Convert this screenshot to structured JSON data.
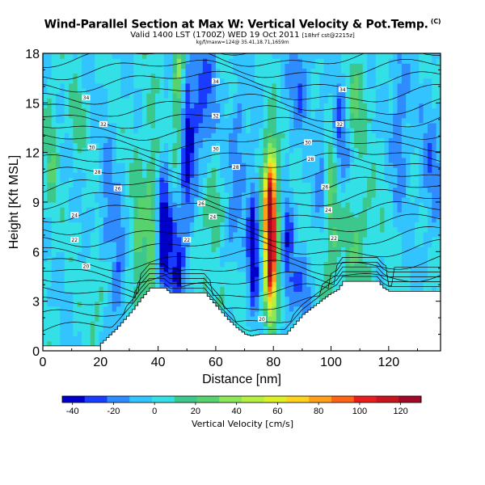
{
  "header": {
    "title": "Wind-Parallel Section at Max W: Vertical Velocity & Pot.Temp.",
    "title_tag": "(C)",
    "valid_line": "Valid 1400 LST (1700Z) WED 19 Oct 2011",
    "valid_line_small": "[18hrf cst@2215z]",
    "loc_line": "kg/f/maxw=124@ 35.41,18.71,1659m"
  },
  "chart_data": {
    "type": "heatmap",
    "xlabel": "Distance [nm]",
    "ylabel": "Height [Kft MSL]",
    "xlim": [
      0,
      138
    ],
    "ylim": [
      0,
      18
    ],
    "xticks": [
      0,
      20,
      40,
      60,
      80,
      100,
      120
    ],
    "yticks": [
      0,
      3,
      6,
      9,
      12,
      15,
      18
    ],
    "colorbar": {
      "title": "Vertical Velocity [cm/s]",
      "ticks": [
        -40,
        -20,
        0,
        20,
        40,
        60,
        80,
        100,
        120
      ],
      "min": -45,
      "max": 130,
      "colors": [
        "#0000c8",
        "#1a3cff",
        "#2f8cff",
        "#33c4ff",
        "#33e0e6",
        "#3cc88c",
        "#58d26e",
        "#8ce658",
        "#b4f040",
        "#dcf028",
        "#ffd21e",
        "#ffa018",
        "#ff6414",
        "#e61e1e",
        "#c8141e",
        "#a00a28"
      ]
    },
    "contour_labels": [
      {
        "text": "34",
        "x": 15,
        "y": 15.3
      },
      {
        "text": "34",
        "x": 60,
        "y": 16.3
      },
      {
        "text": "34",
        "x": 104,
        "y": 15.8
      },
      {
        "text": "32",
        "x": 21,
        "y": 13.7
      },
      {
        "text": "32",
        "x": 60,
        "y": 14.2
      },
      {
        "text": "32",
        "x": 103,
        "y": 13.7
      },
      {
        "text": "30",
        "x": 17,
        "y": 12.3
      },
      {
        "text": "30",
        "x": 60,
        "y": 12.2
      },
      {
        "text": "30",
        "x": 92,
        "y": 12.6
      },
      {
        "text": "28",
        "x": 19,
        "y": 10.8
      },
      {
        "text": "28",
        "x": 67,
        "y": 11.1
      },
      {
        "text": "28",
        "x": 93,
        "y": 11.6
      },
      {
        "text": "26",
        "x": 26,
        "y": 9.8
      },
      {
        "text": "26",
        "x": 55,
        "y": 8.9
      },
      {
        "text": "26",
        "x": 98,
        "y": 9.9
      },
      {
        "text": "24",
        "x": 11,
        "y": 8.2
      },
      {
        "text": "24",
        "x": 59,
        "y": 8.1
      },
      {
        "text": "24",
        "x": 99,
        "y": 8.5
      },
      {
        "text": "22",
        "x": 11,
        "y": 6.7
      },
      {
        "text": "22",
        "x": 50,
        "y": 6.7
      },
      {
        "text": "22",
        "x": 101,
        "y": 6.8
      },
      {
        "text": "20",
        "x": 15,
        "y": 5.1
      },
      {
        "text": "20",
        "x": 76,
        "y": 1.9
      }
    ]
  }
}
